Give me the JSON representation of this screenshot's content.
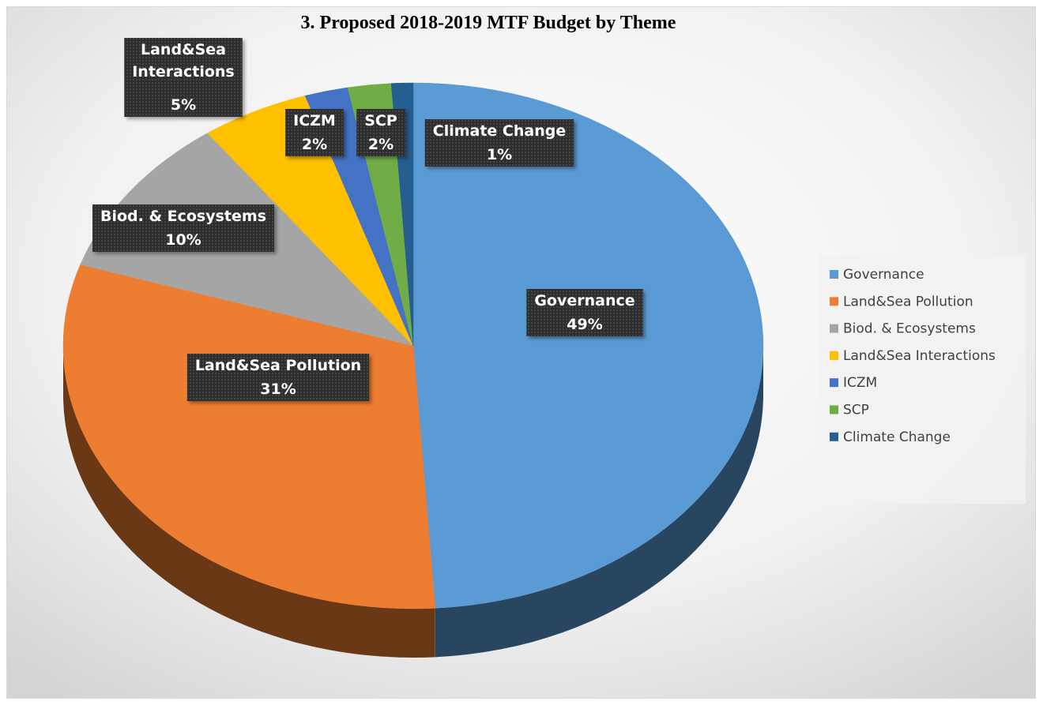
{
  "chart_data": {
    "type": "pie",
    "title": "3. Proposed 2018-2019 MTF Budget by Theme",
    "categories": [
      "Governance",
      "Land&Sea Pollution",
      "Biod. & Ecosystems",
      "Land&Sea Interactions",
      "ICZM",
      "SCP",
      "Climate Change"
    ],
    "values": [
      49,
      31,
      10,
      5,
      2,
      2,
      1
    ],
    "value_labels": [
      "49%",
      "31%",
      "10%",
      "5%",
      "2%",
      "2%",
      "1%"
    ],
    "colors": [
      "#5b9bd5",
      "#ed7d31",
      "#a5a5a5",
      "#ffc000",
      "#4472c4",
      "#70ad47",
      "#255e91"
    ],
    "legend": "right"
  }
}
